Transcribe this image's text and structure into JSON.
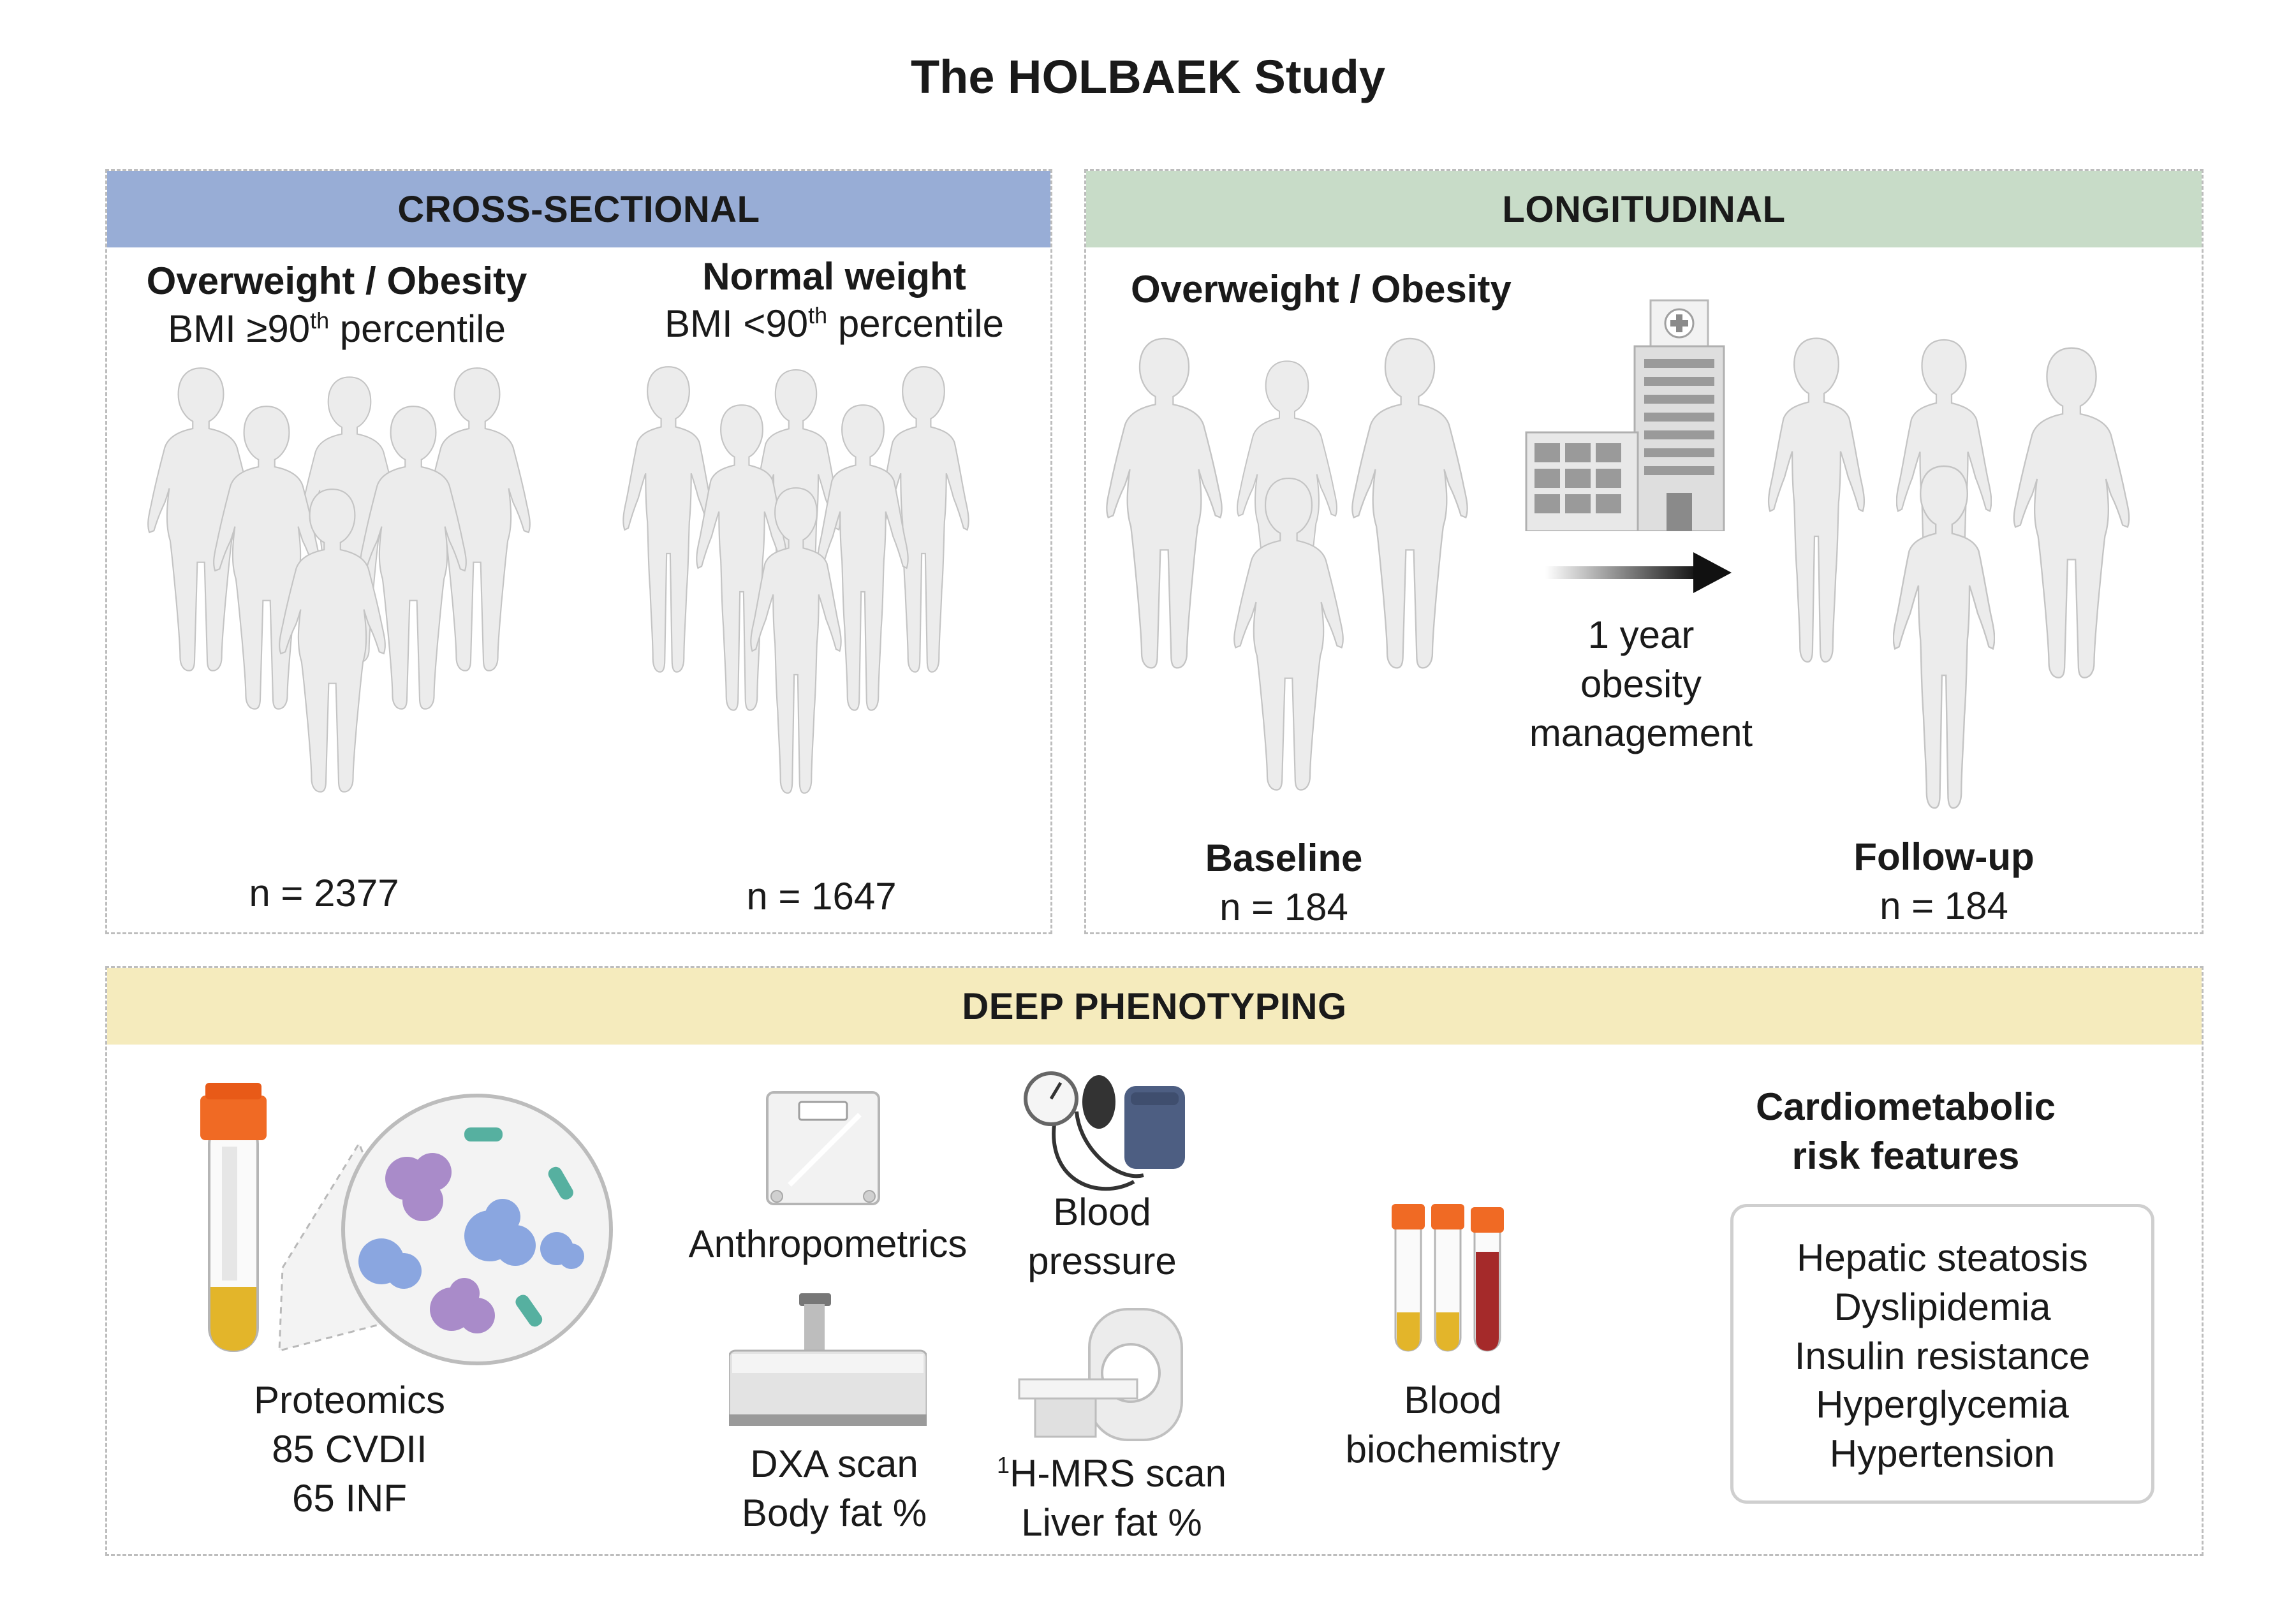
{
  "title": "The HOLBAEK Study",
  "cross_sectional": {
    "header": "CROSS-SECTIONAL",
    "header_color": "#98add6",
    "overweight": {
      "label": "Overweight / Obesity",
      "bmi_prefix": "BMI ≥90",
      "bmi_sup": "th",
      "bmi_suffix": " percentile",
      "n": "n = 2377"
    },
    "normal": {
      "label": "Normal weight",
      "bmi_prefix": "BMI <90",
      "bmi_sup": "th",
      "bmi_suffix": " percentile",
      "n": "n = 1647"
    }
  },
  "longitudinal": {
    "header": "LONGITUDINAL",
    "header_color": "#c8dcc8",
    "group_label": "Overweight / Obesity",
    "intervention": [
      "1 year",
      "obesity",
      "management"
    ],
    "baseline": {
      "label": "Baseline",
      "n": "n = 184"
    },
    "followup": {
      "label": "Follow-up",
      "n": "n = 184"
    }
  },
  "deep_phenotyping": {
    "header": "DEEP PHENOTYPING",
    "header_color": "#f5ebbd",
    "proteomics": [
      "Proteomics",
      "85 CVDII",
      "65 INF"
    ],
    "anthropometrics": "Anthropometrics",
    "blood_pressure": [
      "Blood",
      "pressure"
    ],
    "dxa": [
      "DXA scan",
      "Body fat %"
    ],
    "mrs": {
      "sup": "1",
      "line1": "H-MRS scan",
      "line2": "Liver fat %"
    },
    "biochemistry": [
      "Blood",
      "biochemistry"
    ],
    "risk_title": [
      "Cardiometabolic",
      "risk features"
    ],
    "risk_items": [
      "Hepatic steatosis",
      "Dyslipidemia",
      "Insulin resistance",
      "Hyperglycemia",
      "Hypertension"
    ]
  },
  "icons": [
    "child-figure-icon",
    "hospital-icon",
    "arrow-right-icon",
    "blood-tube-icon",
    "protein-icon",
    "scale-icon",
    "blood-pressure-cuff-icon",
    "dxa-scanner-icon",
    "mri-scanner-icon"
  ],
  "colors": {
    "figure_fill": "#ececec",
    "figure_stroke": "#c4c4c4",
    "tube_cap": "#f06a24",
    "plasma": "#e3b52a",
    "blood": "#a52a2a",
    "protein_purple": "#a98bc9",
    "protein_blue": "#8aa6e0",
    "protein_teal": "#56b0a0"
  }
}
